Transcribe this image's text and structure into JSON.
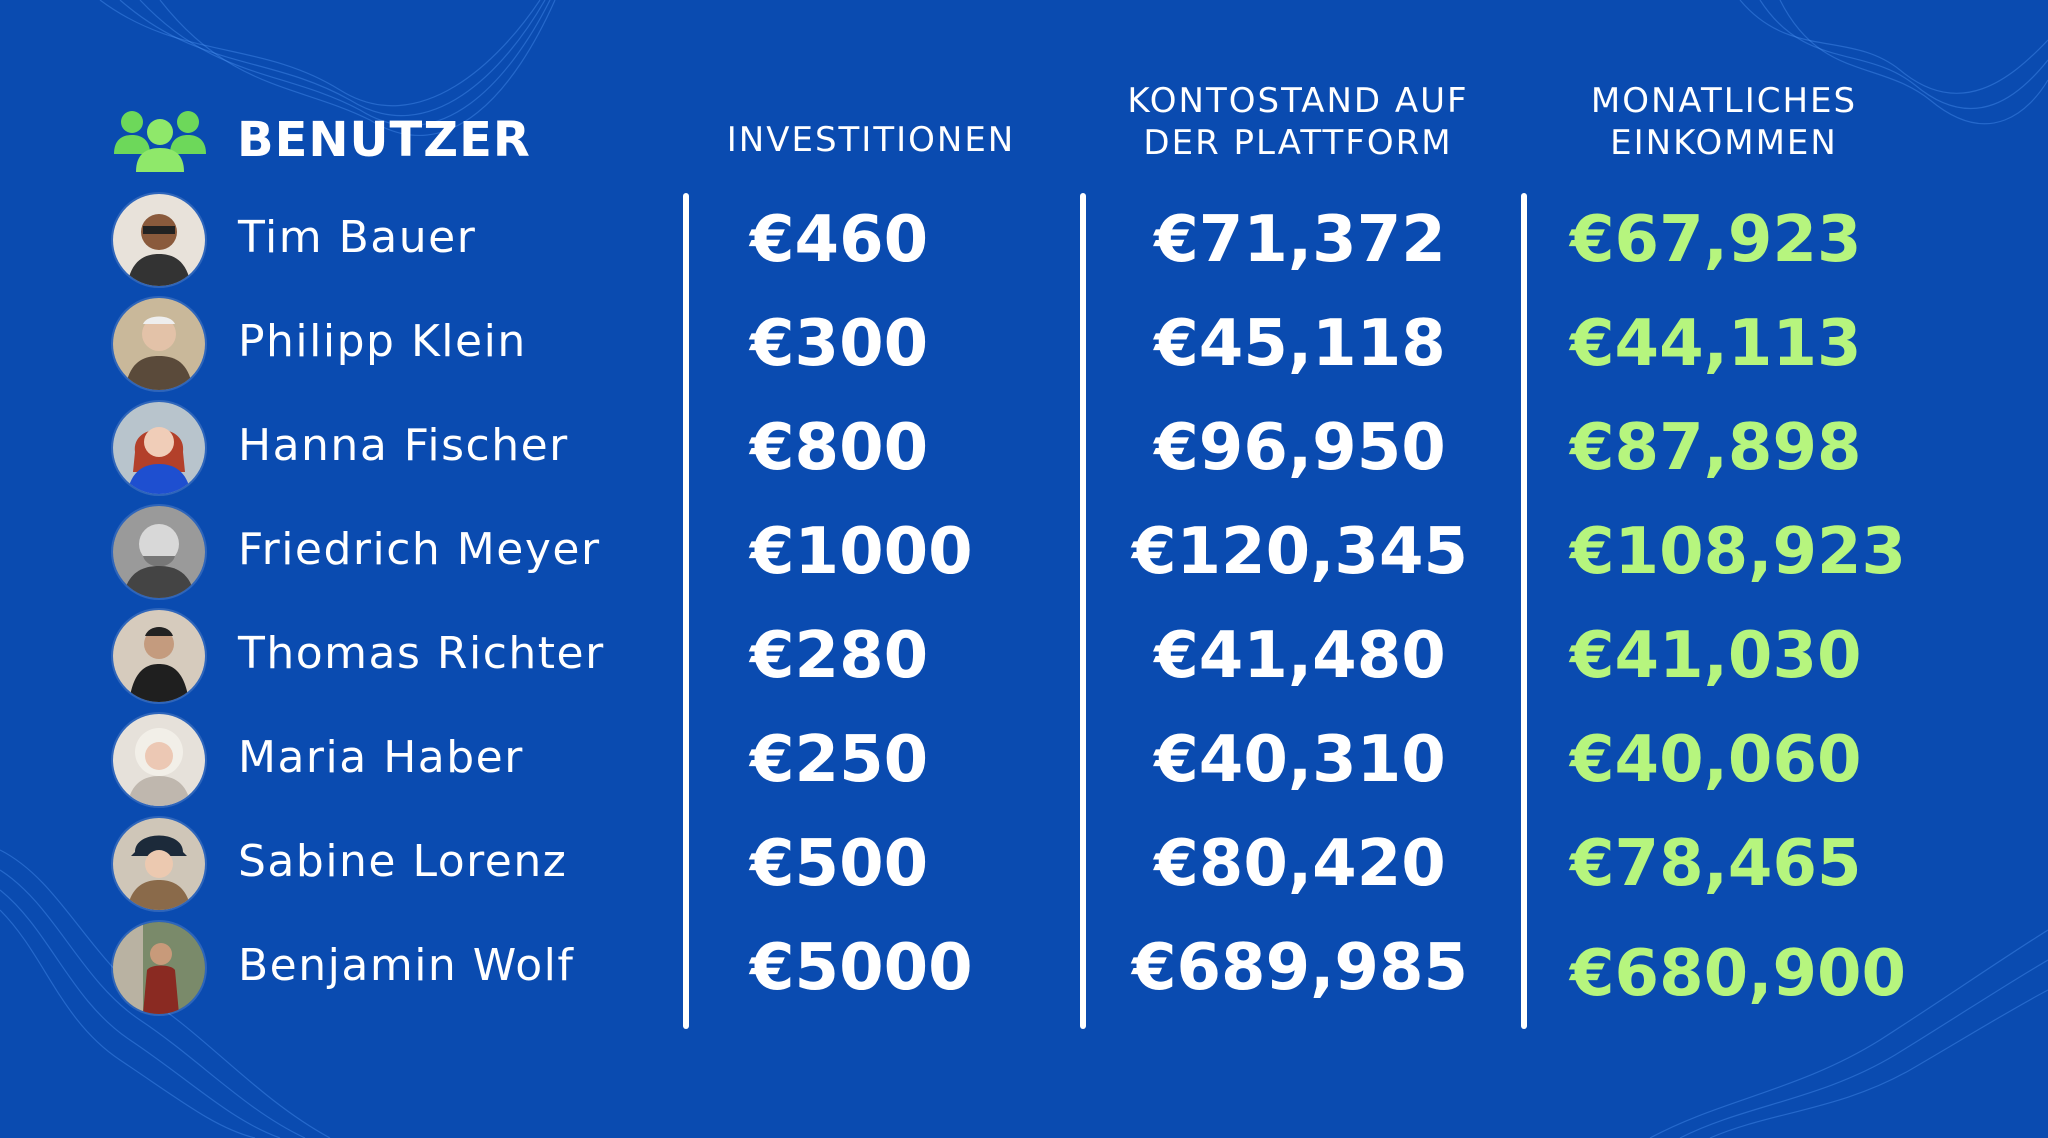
{
  "headers": {
    "users": "BENUTZER",
    "investments": "INVESTITIONEN",
    "balance_line1": "KONTOSTAND AUF",
    "balance_line2": "DER PLATTFORM",
    "income_line1": "MONATLICHES",
    "income_line2": "EINKOMMEN"
  },
  "colors": {
    "background": "#0a4bb0",
    "text": "#ffffff",
    "income": "#b6f57e",
    "icon": "#6dd85a"
  },
  "header_icon": "users-group-icon",
  "rows": [
    {
      "name": "Tim Bauer",
      "investment": "€460",
      "balance": "€71,372",
      "income": "€67,923"
    },
    {
      "name": "Philipp Klein",
      "investment": "€300",
      "balance": "€45,118",
      "income": "€44,113"
    },
    {
      "name": "Hanna Fischer",
      "investment": "€800",
      "balance": "€96,950",
      "income": "€87,898"
    },
    {
      "name": "Friedrich Meyer",
      "investment": "€1000",
      "balance": "€120,345",
      "income": "€108,923"
    },
    {
      "name": "Thomas Richter",
      "investment": "€280",
      "balance": "€41,480",
      "income": "€41,030"
    },
    {
      "name": "Maria Haber",
      "investment": "€250",
      "balance": "€40,310",
      "income": "€40,060"
    },
    {
      "name": "Sabine Lorenz",
      "investment": "€500",
      "balance": "€80,420",
      "income": "€78,465"
    },
    {
      "name": "Benjamin Wolf",
      "investment": "€5000",
      "balance": "€689,985",
      "income": "€680,900"
    }
  ]
}
